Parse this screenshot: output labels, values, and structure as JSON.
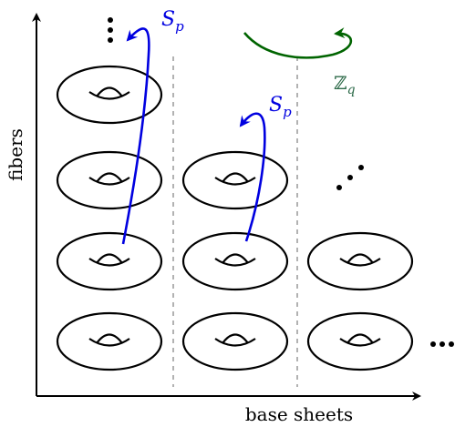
{
  "axes": {
    "vertical": "fibers",
    "horizontal": "base sheets"
  },
  "labels": [
    {
      "main": "S",
      "sub": "p"
    },
    {
      "main": "S",
      "sub": "p"
    },
    {
      "main": "ℤ",
      "sub": "q"
    }
  ]
}
